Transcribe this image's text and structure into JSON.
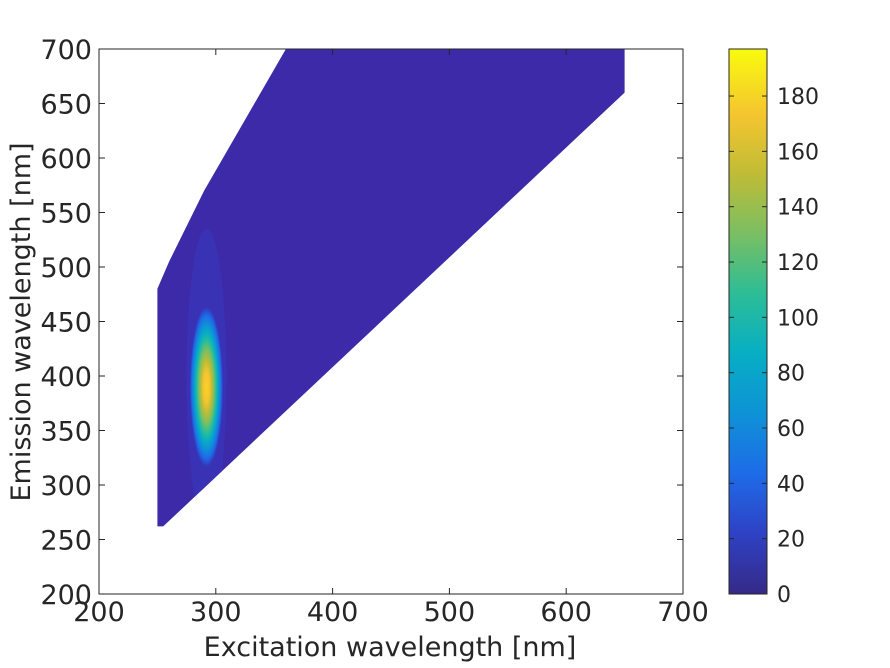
{
  "chart_data": {
    "type": "heatmap",
    "subtype": "filled-contour",
    "title": "",
    "xlabel": "Excitation wavelength [nm]",
    "ylabel": "Emission wavelength [nm]",
    "xlim": [
      200,
      700
    ],
    "ylim": [
      200,
      700
    ],
    "xticks": [
      200,
      300,
      400,
      500,
      600,
      700
    ],
    "yticks": [
      200,
      250,
      300,
      350,
      400,
      450,
      500,
      550,
      600,
      650,
      700
    ],
    "grid": false,
    "colormap": "parula",
    "colorbar": {
      "range": [
        0,
        197
      ],
      "ticks": [
        0,
        20,
        40,
        60,
        80,
        100,
        120,
        140,
        160,
        180
      ]
    },
    "data_region": {
      "description_polygon_data_units": [
        [
          250,
          262
        ],
        [
          250,
          480
        ],
        [
          260,
          505
        ],
        [
          290,
          570
        ],
        [
          360,
          700
        ],
        [
          650,
          700
        ],
        [
          650,
          660
        ],
        [
          255,
          262
        ]
      ]
    },
    "peak": {
      "excitation": 292,
      "emission": 390,
      "value": 197
    },
    "background_value": 2
  },
  "colors": {
    "background_field": "#3d2aa8",
    "axis": "#262626",
    "parula_stops": [
      "#352a87",
      "#2f41c4",
      "#1e6be8",
      "#0e92d6",
      "#07aec4",
      "#2cbd97",
      "#79bf63",
      "#bfbc36",
      "#f5c52f",
      "#f9fb0e"
    ]
  }
}
